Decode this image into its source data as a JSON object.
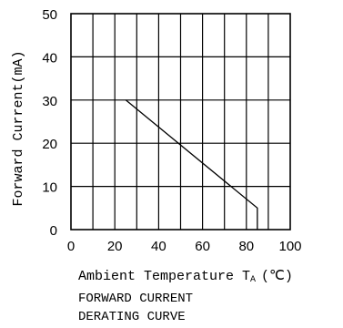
{
  "chart_data": {
    "type": "line",
    "xlabel_main": "Ambient Temperature T",
    "xlabel_sub": "A",
    "xlabel_unit": "(℃)",
    "ylabel": "Forward Current(mA)",
    "caption_line1": "FORWARD CURRENT",
    "caption_line2": "DERATING CURVE",
    "xlim": [
      0,
      100
    ],
    "ylim": [
      0,
      50
    ],
    "x_ticks": [
      0,
      20,
      40,
      60,
      80,
      100
    ],
    "y_ticks": [
      0,
      10,
      20,
      30,
      40,
      50
    ],
    "x_grid_step": 10,
    "y_grid_step": 10,
    "grid": true,
    "series": [
      {
        "points": [
          [
            25,
            30
          ],
          [
            85,
            5
          ],
          [
            85,
            0
          ]
        ]
      }
    ]
  }
}
